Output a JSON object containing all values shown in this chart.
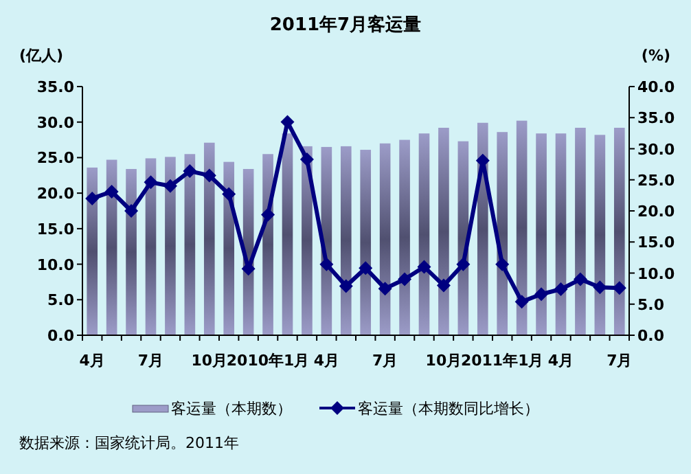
{
  "chart_data": {
    "type": "bar",
    "title": "2011年7月客运量",
    "ylabel": "(亿人)",
    "y2label": "(%)",
    "categories": [
      "4月",
      null,
      null,
      "7月",
      null,
      null,
      "10月",
      null,
      null,
      "2010年1月",
      null,
      null,
      "4月",
      null,
      null,
      "7月",
      null,
      null,
      "10月",
      null,
      null,
      "2011年1月",
      null,
      null,
      "4月",
      null,
      null,
      "7月"
    ],
    "series": [
      {
        "name": "客运量（本期数）",
        "color": "#9c9cc8",
        "values": [
          23.6,
          24.7,
          23.4,
          24.9,
          25.1,
          25.5,
          27.1,
          24.4,
          23.4,
          25.5,
          28.4,
          26.6,
          26.5,
          26.6,
          26.1,
          27.0,
          27.5,
          28.4,
          29.2,
          27.3,
          29.9,
          28.6,
          30.2,
          28.4,
          28.4,
          29.2,
          28.2,
          29.2
        ]
      },
      {
        "name": "客运量（本期数同比增长）",
        "type": "line",
        "axis": "y2",
        "color": "#000080",
        "values": [
          22.0,
          23.1,
          20.0,
          24.6,
          24.0,
          26.4,
          25.7,
          22.7,
          10.7,
          19.4,
          34.3,
          28.3,
          11.4,
          7.9,
          10.8,
          7.5,
          9.0,
          11.0,
          8.0,
          11.4,
          28.1,
          11.4,
          5.4,
          6.6,
          7.4,
          9.0,
          7.7,
          7.6
        ]
      }
    ],
    "ylim": [
      0,
      35
    ],
    "yticks": [
      {
        "value": 0,
        "label": "0.0"
      },
      {
        "value": 5,
        "label": "5.0"
      },
      {
        "value": 10,
        "label": "10.0"
      },
      {
        "value": 15,
        "label": "15.0"
      },
      {
        "value": 20,
        "label": "20.0"
      },
      {
        "value": 25,
        "label": "25.0"
      },
      {
        "value": 30,
        "label": "30.0"
      },
      {
        "value": 35,
        "label": "35.0"
      }
    ],
    "y2lim": [
      0,
      40
    ],
    "y2ticks": [
      {
        "value": 0,
        "label": "0.0"
      },
      {
        "value": 5,
        "label": "5.0"
      },
      {
        "value": 10,
        "label": "10.0"
      },
      {
        "value": 15,
        "label": "15.0"
      },
      {
        "value": 20,
        "label": "20.0"
      },
      {
        "value": 25,
        "label": "25.0"
      },
      {
        "value": 30,
        "label": "30.0"
      },
      {
        "value": 35,
        "label": "35.0"
      },
      {
        "value": 40,
        "label": "40.0"
      }
    ],
    "marker": "diamond",
    "legend": "bottom",
    "annotations": [
      "数据来源：国家统计局。2011年"
    ]
  }
}
